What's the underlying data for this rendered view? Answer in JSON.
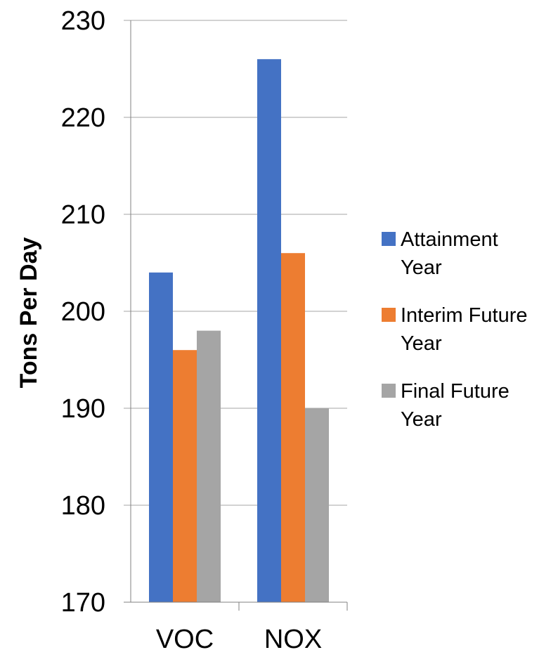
{
  "chart_data": {
    "type": "bar",
    "title": "",
    "xlabel": "",
    "ylabel": "Tons Per Day",
    "categories": [
      "VOC",
      "NOX"
    ],
    "series": [
      {
        "name": "Attainment Year",
        "legend_lines": [
          "Attainment",
          "Year"
        ],
        "values": [
          204,
          226
        ],
        "color": "#4472C4"
      },
      {
        "name": "Interim Future Year",
        "legend_lines": [
          "Interim Future",
          "Year"
        ],
        "values": [
          196,
          206
        ],
        "color": "#ED7D31"
      },
      {
        "name": "Final Future Year",
        "legend_lines": [
          "Final Future",
          "Year"
        ],
        "values": [
          198,
          190
        ],
        "color": "#A5A5A5"
      }
    ],
    "ylim": [
      170,
      230
    ],
    "yticks": [
      170,
      180,
      190,
      200,
      210,
      220,
      230
    ],
    "grid": true,
    "legend_position": "right"
  }
}
